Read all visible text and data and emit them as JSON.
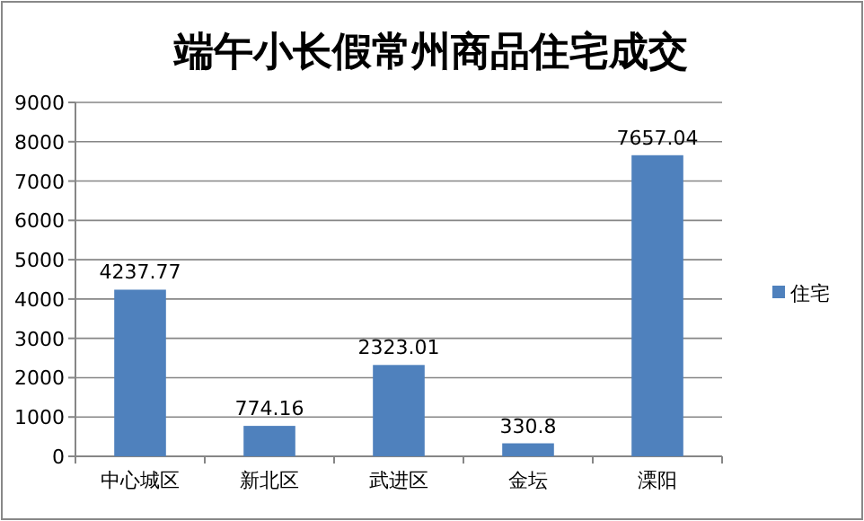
{
  "chart_data": {
    "type": "bar",
    "title": "端午小长假常州商品住宅成交",
    "categories": [
      "中心城区",
      "新北区",
      "武进区",
      "金坛",
      "溧阳"
    ],
    "series": [
      {
        "name": "住宅",
        "color": "#4f81bd",
        "values": [
          4237.77,
          774.16,
          2323.01,
          330.8,
          7657.04
        ]
      }
    ],
    "ylim": [
      0,
      9000
    ],
    "yticks": [
      0,
      1000,
      2000,
      3000,
      4000,
      5000,
      6000,
      7000,
      8000,
      9000
    ],
    "grid": "y",
    "legend": "right",
    "data_labels": true
  }
}
